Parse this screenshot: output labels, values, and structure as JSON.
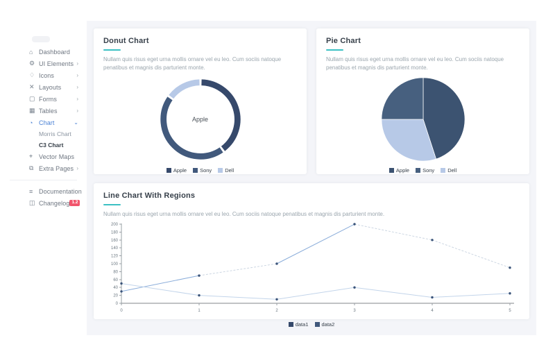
{
  "colors": {
    "accent_teal": "#3bc0c3",
    "active_blue": "#4a81d4",
    "badge_red": "#f1556c",
    "content_bg": "#f4f5f9",
    "navy_dark": "#36496b",
    "navy_mid": "#41597c",
    "blue_light": "#b7c9e7"
  },
  "sidebar": {
    "nav_items": [
      {
        "label": "Dashboard",
        "glyph": "⌂",
        "chevron": ""
      },
      {
        "label": "UI Elements",
        "glyph": "⚙",
        "chevron": "›"
      },
      {
        "label": "Icons",
        "glyph": "♢",
        "chevron": "›"
      },
      {
        "label": "Layouts",
        "glyph": "✕",
        "chevron": "›"
      },
      {
        "label": "Forms",
        "glyph": "▢",
        "chevron": "›"
      },
      {
        "label": "Tables",
        "glyph": "▦",
        "chevron": "›"
      },
      {
        "label": "Chart",
        "glyph": "◔",
        "chevron": "⌄"
      },
      {
        "label": "Vector Maps",
        "glyph": "⌖",
        "chevron": ""
      },
      {
        "label": "Extra Pages",
        "glyph": "⧉",
        "chevron": "›"
      }
    ],
    "chart_submenu": [
      {
        "label": "Morris Chart"
      },
      {
        "label": "C3 Chart"
      }
    ],
    "bottom_items": [
      {
        "label": "Documentation",
        "glyph": "≡",
        "badge": ""
      },
      {
        "label": "Changelog",
        "glyph": "◫",
        "badge": "1.2"
      }
    ]
  },
  "cards": {
    "donut": {
      "title": "Donut Chart",
      "description": "Nullam quis risus eget urna mollis ornare vel eu leo. Cum sociis natoque penatibus et magnis dis parturient monte.",
      "center_label": "Apple"
    },
    "pie": {
      "title": "Pie Chart",
      "description": "Nullam quis risus eget urna mollis ornare vel eu leo. Cum sociis natoque penatibus et magnis dis parturient monte."
    },
    "line": {
      "title": "Line Chart With Regions",
      "description": "Nullam quis risus eget urna mollis ornare vel eu leo. Cum sociis natoque penatibus et magnis dis parturient monte."
    }
  },
  "chart_data": [
    {
      "type": "donut",
      "title": "Donut Chart",
      "labels": [
        "Apple",
        "Sony",
        "Dell"
      ],
      "values": [
        40,
        45,
        15
      ],
      "colors": [
        "#36496b",
        "#41597c",
        "#b7c9e7"
      ],
      "center_label": "Apple",
      "legend_position": "bottom"
    },
    {
      "type": "pie",
      "title": "Pie Chart",
      "labels": [
        "Apple",
        "Sony",
        "Dell"
      ],
      "values": [
        45,
        25,
        30
      ],
      "colors": [
        "#3c5371",
        "#47607f",
        "#b7c9e7"
      ],
      "draw_order": [
        0,
        2,
        1
      ],
      "legend_position": "bottom"
    },
    {
      "type": "line",
      "title": "Line Chart With Regions",
      "x": [
        0,
        1,
        2,
        3,
        4,
        5
      ],
      "xticks": [
        "0",
        "1",
        "2",
        "3",
        "4",
        "5"
      ],
      "ylim": [
        0,
        200
      ],
      "ytick_step": 20,
      "grid": false,
      "legend_position": "bottom",
      "series": [
        {
          "name": "data1",
          "values": [
            30,
            70,
            100,
            200,
            160,
            90
          ],
          "color": "#8badda",
          "dash_color": "#ccd6e2",
          "dashed": [
            [
              1,
              2
            ],
            [
              3,
              5
            ]
          ]
        },
        {
          "name": "data2",
          "values": [
            50,
            20,
            10,
            40,
            15,
            25
          ],
          "color": "#c2d4ea",
          "dash_color": "#ccd6e2",
          "dashed": []
        }
      ],
      "dot_color": "#3b5479",
      "legend_colors": [
        "#36496b",
        "#41597c"
      ]
    }
  ]
}
